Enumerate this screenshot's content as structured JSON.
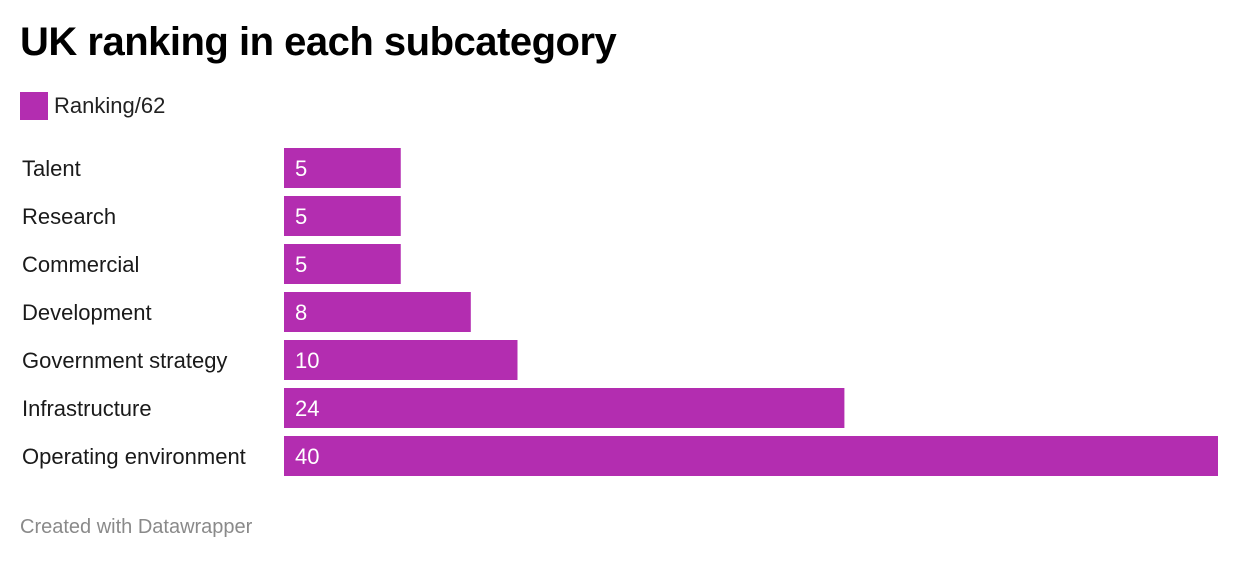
{
  "chart_data": {
    "type": "bar",
    "orientation": "horizontal",
    "title": "UK ranking in each subcategory",
    "categories": [
      "Talent",
      "Research",
      "Commercial",
      "Development",
      "Government strategy",
      "Infrastructure",
      "Operating environment"
    ],
    "series": [
      {
        "name": "Ranking/62",
        "values": [
          5,
          5,
          5,
          8,
          10,
          24,
          40
        ],
        "color": "#b32db0"
      }
    ],
    "xlim": [
      0,
      40
    ],
    "grid": false,
    "legend": "top-left",
    "data_labels": "inside-left"
  },
  "footer": {
    "credit": "Created with Datawrapper"
  }
}
